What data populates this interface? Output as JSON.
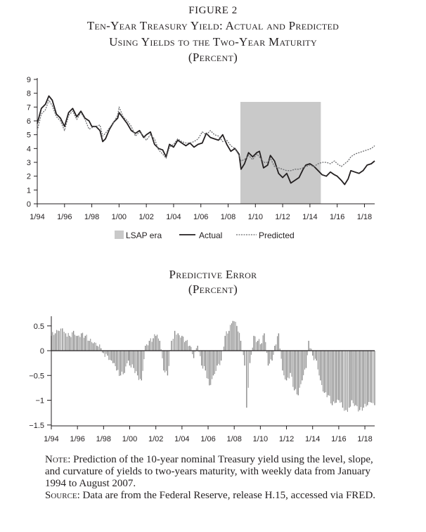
{
  "figure_label": "FIGURE 2",
  "top_title_line1": "Ten-Year Treasury Yield: Actual and Predicted",
  "top_title_line2": "Using Yields to the Two-Year Maturity",
  "top_title_line3": "(Percent)",
  "bottom_title_line1": "Predictive Error",
  "bottom_title_line2": "(Percent)",
  "note_label": "Note:",
  "note_text": "Prediction of the 10-year nominal Treasury yield using the level, slope, and curvature of yields to two-years maturity, with weekly data from January 1994 to August 2007.",
  "source_label": "Source:",
  "source_text": "Data are from the Federal Reserve, release H.15, accessed via FRED.",
  "colors": {
    "ink": "#231f20",
    "lsap": "#c9c9c9",
    "error_bar": "#8a8a8a"
  },
  "chart_data": [
    {
      "type": "line",
      "title": "Ten-Year Treasury Yield: Actual and Predicted Using Yields to the Two-Year Maturity",
      "ylabel": "Percent",
      "x_tick_labels": [
        "1/94",
        "1/96",
        "1/98",
        "1/00",
        "1/02",
        "1/04",
        "1/06",
        "1/08",
        "1/10",
        "1/12",
        "1/14",
        "1/16",
        "1/18"
      ],
      "x_range": [
        1994.0,
        2018.75
      ],
      "ylim": [
        0,
        9
      ],
      "y_ticks": [
        0,
        1,
        2,
        3,
        4,
        5,
        6,
        7,
        8,
        9
      ],
      "shaded_region": {
        "label": "LSAP era",
        "x_start": 2008.9,
        "x_end": 2014.8
      },
      "legend": [
        "LSAP era",
        "Actual",
        "Predicted"
      ],
      "series": [
        {
          "name": "Actual",
          "x": [
            1994.0,
            1994.3,
            1994.6,
            1994.85,
            1995.1,
            1995.4,
            1995.7,
            1996.0,
            1996.3,
            1996.6,
            1996.9,
            1997.2,
            1997.5,
            1997.8,
            1998.0,
            1998.3,
            1998.6,
            1998.8,
            1999.0,
            1999.3,
            1999.6,
            1999.9,
            2000.0,
            2000.3,
            2000.6,
            2000.9,
            2001.2,
            2001.5,
            2001.8,
            2002.0,
            2002.3,
            2002.6,
            2002.9,
            2003.2,
            2003.45,
            2003.7,
            2004.0,
            2004.3,
            2004.6,
            2004.9,
            2005.2,
            2005.5,
            2005.8,
            2006.1,
            2006.4,
            2006.7,
            2007.0,
            2007.3,
            2007.6,
            2007.9,
            2008.2,
            2008.5,
            2008.8,
            2008.95,
            2009.2,
            2009.5,
            2009.8,
            2010.1,
            2010.3,
            2010.6,
            2010.9,
            2011.1,
            2011.4,
            2011.7,
            2012.0,
            2012.3,
            2012.6,
            2012.9,
            2013.2,
            2013.5,
            2013.7,
            2014.0,
            2014.3,
            2014.6,
            2014.9,
            2015.2,
            2015.5,
            2015.8,
            2016.0,
            2016.3,
            2016.55,
            2016.8,
            2017.0,
            2017.3,
            2017.6,
            2017.9,
            2018.2,
            2018.5,
            2018.75
          ],
          "y": [
            5.8,
            6.9,
            7.2,
            7.8,
            7.5,
            6.5,
            6.2,
            5.6,
            6.6,
            6.9,
            6.3,
            6.7,
            6.2,
            6.0,
            5.6,
            5.6,
            5.3,
            4.5,
            4.7,
            5.4,
            5.9,
            6.2,
            6.6,
            6.2,
            5.8,
            5.3,
            5.1,
            5.3,
            4.8,
            5.0,
            5.2,
            4.3,
            4.0,
            3.9,
            3.4,
            4.3,
            4.1,
            4.6,
            4.4,
            4.2,
            4.4,
            4.1,
            4.3,
            4.4,
            5.1,
            4.8,
            4.7,
            4.6,
            5.0,
            4.3,
            3.8,
            4.0,
            3.6,
            2.5,
            2.9,
            3.7,
            3.4,
            3.7,
            3.8,
            2.6,
            2.8,
            3.5,
            3.1,
            2.2,
            1.9,
            2.2,
            1.5,
            1.7,
            1.9,
            2.5,
            2.8,
            2.9,
            2.7,
            2.4,
            2.1,
            2.0,
            2.3,
            2.1,
            2.0,
            1.7,
            1.4,
            1.8,
            2.4,
            2.3,
            2.2,
            2.4,
            2.8,
            2.9,
            3.1
          ]
        },
        {
          "name": "Predicted",
          "x": [
            1994.0,
            1994.3,
            1994.6,
            1994.85,
            1995.1,
            1995.4,
            1995.7,
            1996.0,
            1996.3,
            1996.6,
            1996.9,
            1997.2,
            1997.5,
            1997.8,
            1998.0,
            1998.3,
            1998.6,
            1998.8,
            1999.0,
            1999.3,
            1999.6,
            1999.9,
            2000.0,
            2000.3,
            2000.6,
            2000.9,
            2001.2,
            2001.5,
            2001.8,
            2002.0,
            2002.3,
            2002.6,
            2002.9,
            2003.2,
            2003.45,
            2003.7,
            2004.0,
            2004.3,
            2004.6,
            2004.9,
            2005.2,
            2005.5,
            2005.8,
            2006.1,
            2006.4,
            2006.7,
            2007.0,
            2007.3,
            2007.6,
            2007.9,
            2008.2,
            2008.5,
            2008.8,
            2008.95,
            2009.2,
            2009.5,
            2009.8,
            2010.1,
            2010.3,
            2010.6,
            2010.9,
            2011.1,
            2011.4,
            2011.7,
            2012.0,
            2012.3,
            2012.6,
            2012.9,
            2013.2,
            2013.5,
            2013.7,
            2014.0,
            2014.3,
            2014.6,
            2014.9,
            2015.2,
            2015.5,
            2015.8,
            2016.0,
            2016.3,
            2016.55,
            2016.8,
            2017.0,
            2017.3,
            2017.6,
            2017.9,
            2018.2,
            2018.5,
            2018.75
          ],
          "y": [
            5.3,
            6.5,
            6.8,
            7.5,
            7.1,
            6.3,
            6.0,
            5.3,
            6.4,
            6.7,
            6.1,
            6.6,
            6.1,
            5.4,
            5.5,
            5.6,
            5.7,
            4.9,
            5.1,
            5.5,
            5.9,
            6.4,
            7.0,
            6.3,
            6.0,
            5.6,
            4.9,
            5.2,
            4.9,
            4.6,
            5.0,
            4.7,
            3.9,
            3.6,
            3.3,
            4.1,
            4.3,
            4.7,
            4.5,
            4.4,
            4.4,
            4.5,
            4.7,
            5.2,
            5.0,
            5.3,
            5.0,
            4.9,
            4.5,
            4.6,
            4.2,
            4.0,
            3.5,
            3.1,
            3.2,
            3.5,
            3.2,
            3.6,
            3.4,
            3.0,
            3.0,
            3.3,
            2.7,
            2.6,
            2.5,
            2.4,
            2.4,
            2.5,
            2.5,
            2.6,
            2.7,
            2.8,
            2.7,
            2.9,
            3.0,
            3.0,
            2.9,
            3.1,
            2.9,
            2.7,
            2.9,
            3.1,
            3.4,
            3.6,
            3.7,
            3.8,
            3.9,
            4.0,
            4.2
          ]
        }
      ]
    },
    {
      "type": "bar",
      "title": "Predictive Error",
      "ylabel": "Percent",
      "x_tick_labels": [
        "1/94",
        "1/96",
        "1/98",
        "1/00",
        "1/02",
        "1/04",
        "1/06",
        "1/08",
        "1/10",
        "1/12",
        "1/14",
        "1/16",
        "1/18"
      ],
      "x_range": [
        1994.0,
        2018.75
      ],
      "ylim": [
        -1.5,
        0.75
      ],
      "y_ticks": [
        -1.5,
        -1,
        -0.5,
        0,
        0.5
      ],
      "y_tick_labels": [
        "−1.5",
        "−1",
        "−0.5",
        "0",
        "0.5"
      ],
      "x": [
        1994.0,
        1994.3,
        1994.6,
        1994.85,
        1995.1,
        1995.4,
        1995.7,
        1996.0,
        1996.3,
        1996.6,
        1996.9,
        1997.2,
        1997.5,
        1997.8,
        1998.0,
        1998.3,
        1998.6,
        1998.8,
        1999.0,
        1999.3,
        1999.6,
        1999.9,
        2000.0,
        2000.3,
        2000.6,
        2000.9,
        2001.2,
        2001.5,
        2001.8,
        2002.0,
        2002.3,
        2002.6,
        2002.9,
        2003.2,
        2003.45,
        2003.7,
        2004.0,
        2004.3,
        2004.6,
        2004.9,
        2005.2,
        2005.5,
        2005.8,
        2006.1,
        2006.4,
        2006.7,
        2007.0,
        2007.3,
        2007.6,
        2007.9,
        2008.2,
        2008.5,
        2008.8,
        2008.95,
        2009.2,
        2009.5,
        2009.8,
        2010.1,
        2010.3,
        2010.6,
        2010.9,
        2011.1,
        2011.4,
        2011.7,
        2012.0,
        2012.3,
        2012.6,
        2012.9,
        2013.2,
        2013.5,
        2013.7,
        2014.0,
        2014.3,
        2014.6,
        2014.9,
        2015.2,
        2015.5,
        2015.8,
        2016.0,
        2016.3,
        2016.55,
        2016.8,
        2017.0,
        2017.3,
        2017.6,
        2017.9,
        2018.2,
        2018.5,
        2018.75
      ],
      "values": [
        0.3,
        0.35,
        0.4,
        0.45,
        0.35,
        0.3,
        0.4,
        0.3,
        0.35,
        0.3,
        0.2,
        0.15,
        0.1,
        0.05,
        -0.05,
        -0.1,
        -0.2,
        -0.25,
        -0.4,
        -0.5,
        -0.45,
        -0.2,
        -0.3,
        -0.35,
        -0.5,
        -0.6,
        0.1,
        0.2,
        0.25,
        0.3,
        0.2,
        -0.4,
        -0.5,
        0.2,
        0.4,
        0.35,
        0.3,
        0.2,
        0.1,
        -0.15,
        0.1,
        -0.3,
        -0.4,
        -0.7,
        -0.5,
        -0.3,
        -0.2,
        0.3,
        0.4,
        0.6,
        0.5,
        0.2,
        -0.3,
        -1.15,
        -0.25,
        0.3,
        0.2,
        0.15,
        0.35,
        -0.3,
        -0.2,
        0.1,
        0.35,
        -0.4,
        -0.6,
        -0.45,
        -0.8,
        -0.9,
        -0.6,
        -0.35,
        0.2,
        -0.1,
        -0.2,
        -0.6,
        -0.85,
        -0.9,
        -1.1,
        -1.05,
        -1.0,
        -1.15,
        -1.2,
        -1.15,
        -1.0,
        -1.1,
        -1.2,
        -1.15,
        -1.1,
        -1.05,
        -1.1
      ]
    }
  ]
}
